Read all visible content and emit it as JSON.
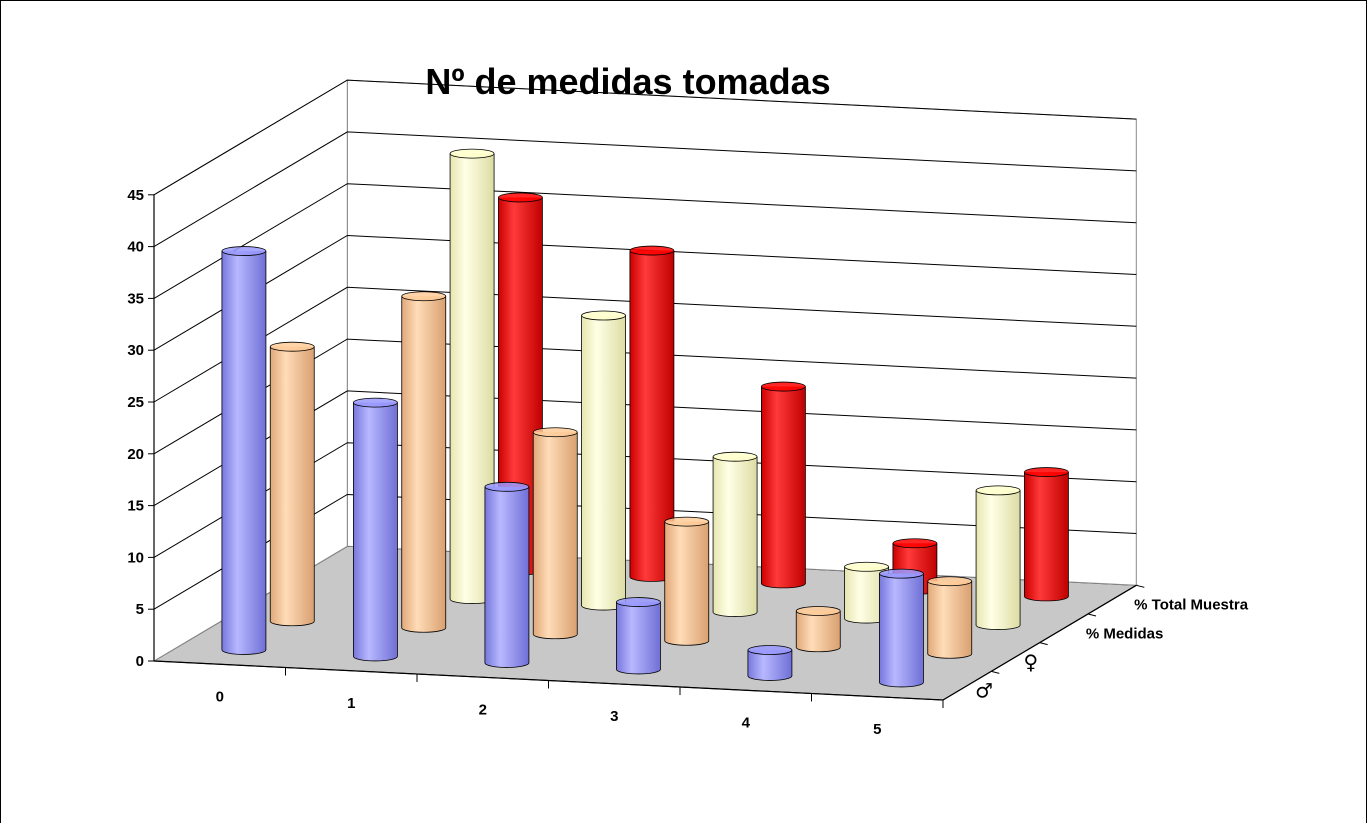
{
  "chart_data": {
    "type": "bar",
    "title": "Nº de medidas tomadas",
    "categories": [
      "0",
      "1",
      "2",
      "3",
      "4",
      "5"
    ],
    "series": [
      {
        "name": "♂",
        "values": [
          38.5,
          24.5,
          17,
          6.5,
          2.5,
          10.5
        ]
      },
      {
        "name": "♀",
        "values": [
          26.5,
          32,
          19.5,
          11.5,
          3.5,
          7
        ]
      },
      {
        "name": "% Medidas",
        "values": [
          null,
          43,
          28,
          15,
          5,
          13
        ]
      },
      {
        "name": "% Total Muestra",
        "values": [
          null,
          36,
          31.5,
          19,
          4.5,
          12
        ]
      }
    ],
    "ylim": [
      0,
      45
    ],
    "yticks": [
      0,
      5,
      10,
      15,
      20,
      25,
      30,
      35,
      40,
      45
    ],
    "grid": true,
    "colors": [
      "#9999ff",
      "#ffcc99",
      "#ffffcc",
      "#ff0000"
    ]
  }
}
